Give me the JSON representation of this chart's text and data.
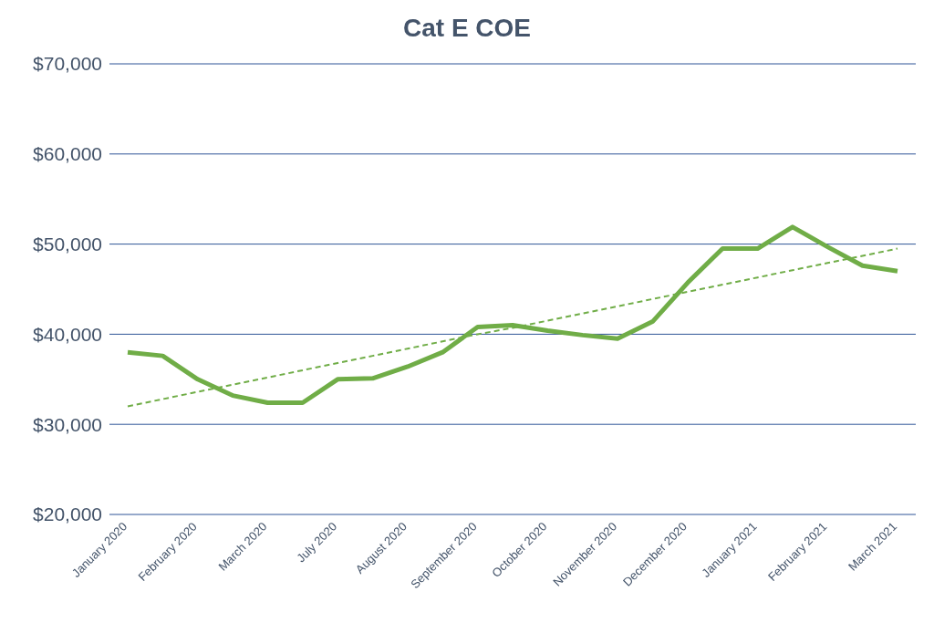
{
  "chart_data": {
    "type": "line",
    "title": "Cat E COE",
    "categories": [
      "January 2020",
      null,
      "February 2020",
      null,
      "March 2020",
      null,
      "July 2020",
      null,
      "August 2020",
      null,
      "September 2020",
      null,
      "October 2020",
      null,
      "November 2020",
      null,
      "December 2020",
      null,
      "January 2021",
      null,
      "February 2021",
      null,
      "March 2021"
    ],
    "series": [
      {
        "color": "#70ad47",
        "line_style": "solid",
        "values": [
          38000,
          37600,
          35000,
          33200,
          32400,
          32400,
          35000,
          35100,
          36400,
          38000,
          40800,
          41000,
          40400,
          39900,
          39500,
          41400,
          45700,
          49500,
          49500,
          51900,
          49700,
          47600,
          47000
        ]
      },
      {
        "color": "#70ad47",
        "line_style": "dashed",
        "values": [
          32000,
          32800,
          33600,
          34400,
          35200,
          36000,
          36800,
          37600,
          38400,
          39200,
          40000,
          40700,
          41500,
          42300,
          43100,
          43900,
          44700,
          45500,
          46300,
          47100,
          47900,
          48700,
          49500
        ]
      }
    ],
    "ylim": [
      20000,
      70000
    ],
    "yticks": [
      {
        "value": 20000,
        "label": "$20,000"
      },
      {
        "value": 30000,
        "label": "$30,000"
      },
      {
        "value": 40000,
        "label": "$40,000"
      },
      {
        "value": 50000,
        "label": "$50,000"
      },
      {
        "value": 60000,
        "label": "$60,000"
      },
      {
        "value": 70000,
        "label": "$70,000"
      }
    ],
    "grid": "y",
    "legend": false,
    "marker": "none"
  }
}
